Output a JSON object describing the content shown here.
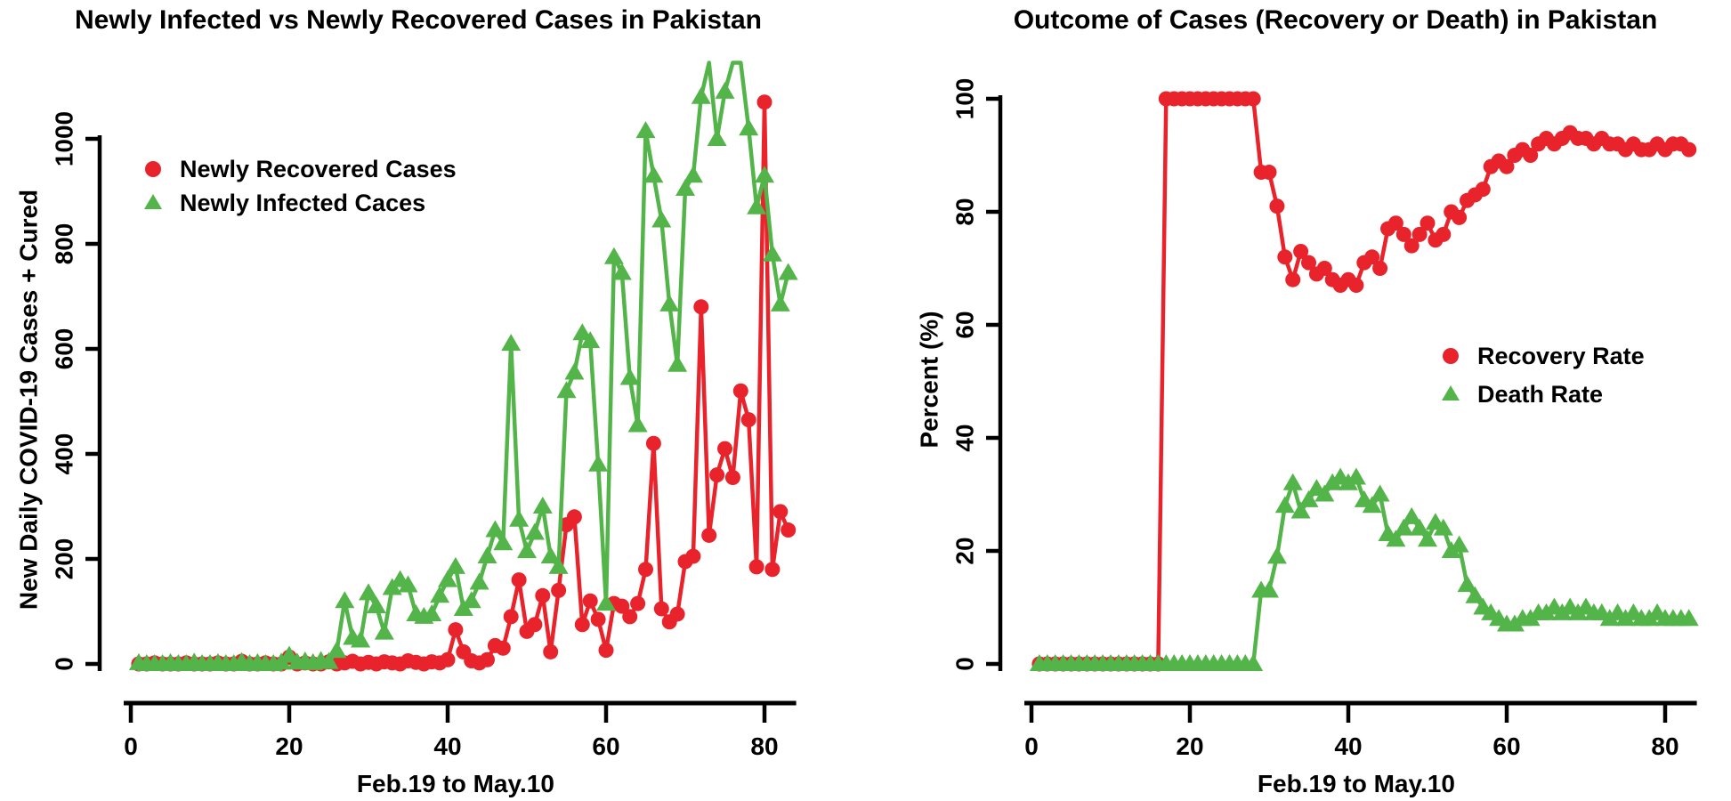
{
  "figure": {
    "background": "#ffffff",
    "axis_color": "#000000",
    "text_color": "#000000"
  },
  "chart_data": [
    {
      "type": "line",
      "title": "Newly Infected vs Newly Recovered Cases in Pakistan",
      "xlabel": "Feb.19 to May.10",
      "ylabel": "New Daily COVID-19 Cases + Cured",
      "x_start": 1,
      "xlim": [
        0,
        84
      ],
      "ylim": [
        0,
        1150
      ],
      "xticks": [
        0,
        20,
        40,
        60,
        80
      ],
      "yticks": [
        0,
        200,
        400,
        600,
        800,
        1000
      ],
      "grid": false,
      "legend_position": "upper-left",
      "series": [
        {
          "name": "Newly Recovered Cases",
          "marker": "circle",
          "color": "#e8232b",
          "values": [
            0,
            0,
            2,
            0,
            0,
            0,
            2,
            0,
            0,
            0,
            2,
            0,
            0,
            5,
            0,
            0,
            2,
            0,
            0,
            13,
            0,
            2,
            0,
            0,
            4,
            0,
            2,
            5,
            0,
            3,
            0,
            4,
            2,
            0,
            6,
            3,
            0,
            4,
            2,
            8,
            65,
            23,
            6,
            2,
            8,
            35,
            30,
            90,
            160,
            62,
            75,
            130,
            23,
            140,
            265,
            280,
            75,
            120,
            85,
            26,
            115,
            110,
            90,
            115,
            180,
            420,
            105,
            80,
            95,
            195,
            205,
            680,
            245,
            360,
            410,
            355,
            520,
            465,
            185,
            1070,
            180,
            290,
            255
          ]
        },
        {
          "name": "Newly Infected Caces",
          "marker": "triangle",
          "color": "#53b449",
          "values": [
            2,
            0,
            0,
            0,
            2,
            0,
            0,
            3,
            0,
            0,
            2,
            0,
            0,
            4,
            0,
            2,
            0,
            0,
            3,
            16,
            3,
            5,
            2,
            6,
            4,
            25,
            120,
            50,
            45,
            135,
            110,
            60,
            145,
            160,
            150,
            95,
            90,
            95,
            130,
            160,
            185,
            105,
            120,
            155,
            205,
            255,
            230,
            610,
            275,
            215,
            250,
            300,
            205,
            185,
            520,
            555,
            630,
            615,
            380,
            115,
            775,
            745,
            545,
            455,
            1015,
            930,
            845,
            685,
            570,
            905,
            930,
            1080,
            1145,
            1000,
            1090,
            1145,
            1145,
            1020,
            870,
            930,
            780,
            685,
            745
          ]
        }
      ]
    },
    {
      "type": "line",
      "title": "Outcome of Cases (Recovery or Death) in Pakistan",
      "xlabel": "Feb.19 to May.10",
      "ylabel": "Percent (%)",
      "x_start": 1,
      "xlim": [
        0,
        84
      ],
      "ylim": [
        0,
        100
      ],
      "xticks": [
        0,
        20,
        40,
        60,
        80
      ],
      "yticks": [
        0,
        20,
        40,
        60,
        80,
        100
      ],
      "grid": false,
      "legend_position": "middle-right",
      "series": [
        {
          "name": "Recovery Rate",
          "marker": "circle",
          "color": "#e8232b",
          "values": [
            0,
            0,
            0,
            0,
            0,
            0,
            0,
            0,
            0,
            0,
            0,
            0,
            0,
            0,
            0,
            0,
            100,
            100,
            100,
            100,
            100,
            100,
            100,
            100,
            100,
            100,
            100,
            100,
            87,
            87,
            81,
            72,
            68,
            73,
            71,
            69,
            70,
            68,
            67,
            68,
            67,
            71,
            72,
            70,
            77,
            78,
            76,
            74,
            76,
            78,
            75,
            76,
            80,
            79,
            82,
            83,
            84,
            88,
            89,
            88,
            90,
            91,
            90,
            92,
            93,
            92,
            93,
            94,
            93,
            93,
            92,
            93,
            92,
            92,
            91,
            92,
            91,
            91,
            92,
            91,
            92,
            92,
            91
          ]
        },
        {
          "name": "Death Rate",
          "marker": "triangle",
          "color": "#53b449",
          "values": [
            0,
            0,
            0,
            0,
            0,
            0,
            0,
            0,
            0,
            0,
            0,
            0,
            0,
            0,
            0,
            0,
            0,
            0,
            0,
            0,
            0,
            0,
            0,
            0,
            0,
            0,
            0,
            0,
            13,
            13,
            19,
            28,
            32,
            27,
            29,
            31,
            30,
            32,
            33,
            32,
            33,
            29,
            28,
            30,
            23,
            22,
            24,
            26,
            24,
            22,
            25,
            24,
            20,
            21,
            14,
            12,
            10,
            9,
            8,
            7,
            7,
            8,
            8,
            9,
            9,
            10,
            9,
            10,
            9,
            10,
            9,
            9,
            8,
            9,
            8,
            9,
            8,
            8,
            9,
            8,
            8,
            8,
            8
          ]
        }
      ]
    }
  ]
}
